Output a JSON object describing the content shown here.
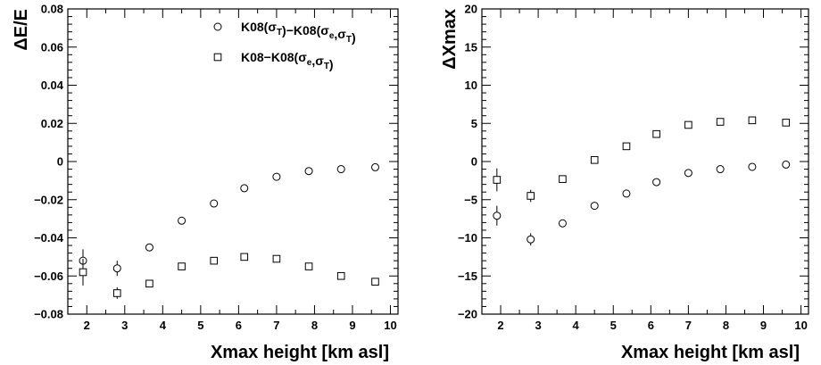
{
  "chart_data": [
    {
      "type": "scatter",
      "xlabel": "Xmax height [km asl]",
      "ylabel": "ΔE/E",
      "xlim": [
        1.5,
        10.2
      ],
      "ylim": [
        -0.08,
        0.08
      ],
      "xticks": [
        "2",
        "3",
        "4",
        "5",
        "6",
        "7",
        "8",
        "9",
        "10"
      ],
      "yticks": [
        "−0.08",
        "−0.06",
        "−0.04",
        "−0.02",
        "0",
        "0.02",
        "0.04",
        "0.06",
        "0.08"
      ],
      "grid": false,
      "legend_position": "top-right",
      "series": [
        {
          "name": "K08(σT)−K08(σe,σT)",
          "legend_base": "K08(",
          "legend_parts": [
            {
              "text": "K08(",
              "style": "normal"
            },
            {
              "text": "σ",
              "style": "normal"
            },
            {
              "text": "T",
              "style": "sub"
            },
            {
              "text": ")−K08(",
              "style": "normal"
            },
            {
              "text": "σ",
              "style": "normal"
            },
            {
              "text": "e",
              "style": "sub"
            },
            {
              "text": ",",
              "style": "normal"
            },
            {
              "text": "σ",
              "style": "normal"
            },
            {
              "text": "T",
              "style": "sub"
            },
            {
              "text": ")",
              "style": "normal"
            }
          ],
          "marker": "circle",
          "x": [
            1.9,
            2.8,
            3.65,
            4.5,
            5.35,
            6.15,
            7.0,
            7.85,
            8.7,
            9.6
          ],
          "y": [
            -0.052,
            -0.056,
            -0.045,
            -0.031,
            -0.022,
            -0.014,
            -0.008,
            -0.005,
            -0.004,
            -0.003
          ],
          "yerr": [
            0.006,
            0.004,
            0.0015,
            0.001,
            0.001,
            0.001,
            0.001,
            0.001,
            0.001,
            0.001
          ]
        },
        {
          "name": "K08−K08(σe,σT)",
          "legend_parts": [
            {
              "text": "K08−K08(",
              "style": "normal"
            },
            {
              "text": "σ",
              "style": "normal"
            },
            {
              "text": "e",
              "style": "sub"
            },
            {
              "text": ",",
              "style": "normal"
            },
            {
              "text": "σ",
              "style": "normal"
            },
            {
              "text": "T",
              "style": "sub"
            },
            {
              "text": ")",
              "style": "normal"
            }
          ],
          "marker": "square",
          "x": [
            1.9,
            2.8,
            3.65,
            4.5,
            5.35,
            6.15,
            7.0,
            7.85,
            8.7,
            9.6
          ],
          "y": [
            -0.058,
            -0.069,
            -0.064,
            -0.055,
            -0.052,
            -0.05,
            -0.051,
            -0.055,
            -0.06,
            -0.063
          ],
          "yerr": [
            0.007,
            0.003,
            0.0015,
            0.001,
            0.001,
            0.001,
            0.001,
            0.001,
            0.001,
            0.001
          ]
        }
      ]
    },
    {
      "type": "scatter",
      "xlabel": "Xmax height [km asl]",
      "ylabel": "ΔXmax",
      "xlim": [
        1.5,
        10.2
      ],
      "ylim": [
        -20,
        20
      ],
      "xticks": [
        "2",
        "3",
        "4",
        "5",
        "6",
        "7",
        "8",
        "9",
        "10"
      ],
      "yticks": [
        "−20",
        "−15",
        "−10",
        "−5",
        "0",
        "5",
        "10",
        "15",
        "20"
      ],
      "grid": false,
      "series": [
        {
          "marker": "circle",
          "x": [
            1.9,
            2.8,
            3.65,
            4.5,
            5.35,
            6.15,
            7.0,
            7.85,
            8.7,
            9.6
          ],
          "y": [
            -7.1,
            -10.2,
            -8.1,
            -5.8,
            -4.2,
            -2.7,
            -1.5,
            -1.0,
            -0.7,
            -0.4
          ],
          "yerr": [
            1.3,
            0.8,
            0.4,
            0.3,
            0.3,
            0.3,
            0.3,
            0.3,
            0.3,
            0.3
          ]
        },
        {
          "marker": "square",
          "x": [
            1.9,
            2.8,
            3.65,
            4.5,
            5.35,
            6.15,
            7.0,
            7.85,
            8.7,
            9.6
          ],
          "y": [
            -2.4,
            -4.5,
            -2.3,
            0.2,
            2.0,
            3.6,
            4.8,
            5.2,
            5.4,
            5.1
          ],
          "yerr": [
            1.5,
            0.8,
            0.4,
            0.3,
            0.3,
            0.3,
            0.3,
            0.3,
            0.3,
            0.3
          ]
        }
      ]
    }
  ]
}
